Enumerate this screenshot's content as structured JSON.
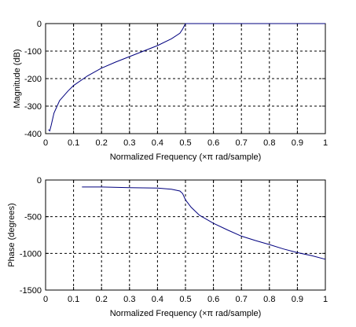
{
  "chart_data": [
    {
      "type": "line",
      "xlabel": "Normalized Frequency  (×π rad/sample)",
      "ylabel": "Magnitude (dB)",
      "xlim": [
        0,
        1
      ],
      "ylim": [
        -400,
        0
      ],
      "xticks": [
        "0",
        "0.1",
        "0.2",
        "0.3",
        "0.4",
        "0.5",
        "0.6",
        "0.7",
        "0.8",
        "0.9",
        "1"
      ],
      "yticks": [
        "0",
        "-100",
        "-200",
        "-300",
        "-400"
      ],
      "grid": true,
      "line_color": "#00007f",
      "series": [
        {
          "x": [
            0.01,
            0.015,
            0.02,
            0.03,
            0.05,
            0.08,
            0.1,
            0.15,
            0.2,
            0.25,
            0.3,
            0.35,
            0.4,
            0.45,
            0.48,
            0.49,
            0.5,
            0.6,
            0.7,
            0.8,
            0.9,
            1.0
          ],
          "values": [
            -385,
            -390,
            -370,
            -325,
            -280,
            -245,
            -225,
            -190,
            -162,
            -140,
            -120,
            -100,
            -80,
            -55,
            -35,
            -20,
            0,
            0,
            0,
            0,
            0,
            0
          ]
        }
      ]
    },
    {
      "type": "line",
      "xlabel": "Normalized Frequency  (×π rad/sample)",
      "ylabel": "Phase (degrees)",
      "xlim": [
        0,
        1
      ],
      "ylim": [
        -1500,
        0
      ],
      "xticks": [
        "0",
        "0.1",
        "0.2",
        "0.3",
        "0.4",
        "0.5",
        "0.6",
        "0.7",
        "0.8",
        "0.9",
        "1"
      ],
      "yticks": [
        "0",
        "-500",
        "-1000",
        "-1500"
      ],
      "grid": true,
      "line_color": "#00007f",
      "series": [
        {
          "x": [
            0.13,
            0.2,
            0.3,
            0.4,
            0.45,
            0.48,
            0.49,
            0.5,
            0.52,
            0.55,
            0.6,
            0.65,
            0.7,
            0.75,
            0.8,
            0.85,
            0.9,
            0.95,
            1.0
          ],
          "values": [
            -95,
            -95,
            -105,
            -110,
            -125,
            -150,
            -185,
            -270,
            -370,
            -480,
            -590,
            -680,
            -765,
            -825,
            -880,
            -940,
            -990,
            -1030,
            -1080
          ]
        }
      ]
    }
  ]
}
